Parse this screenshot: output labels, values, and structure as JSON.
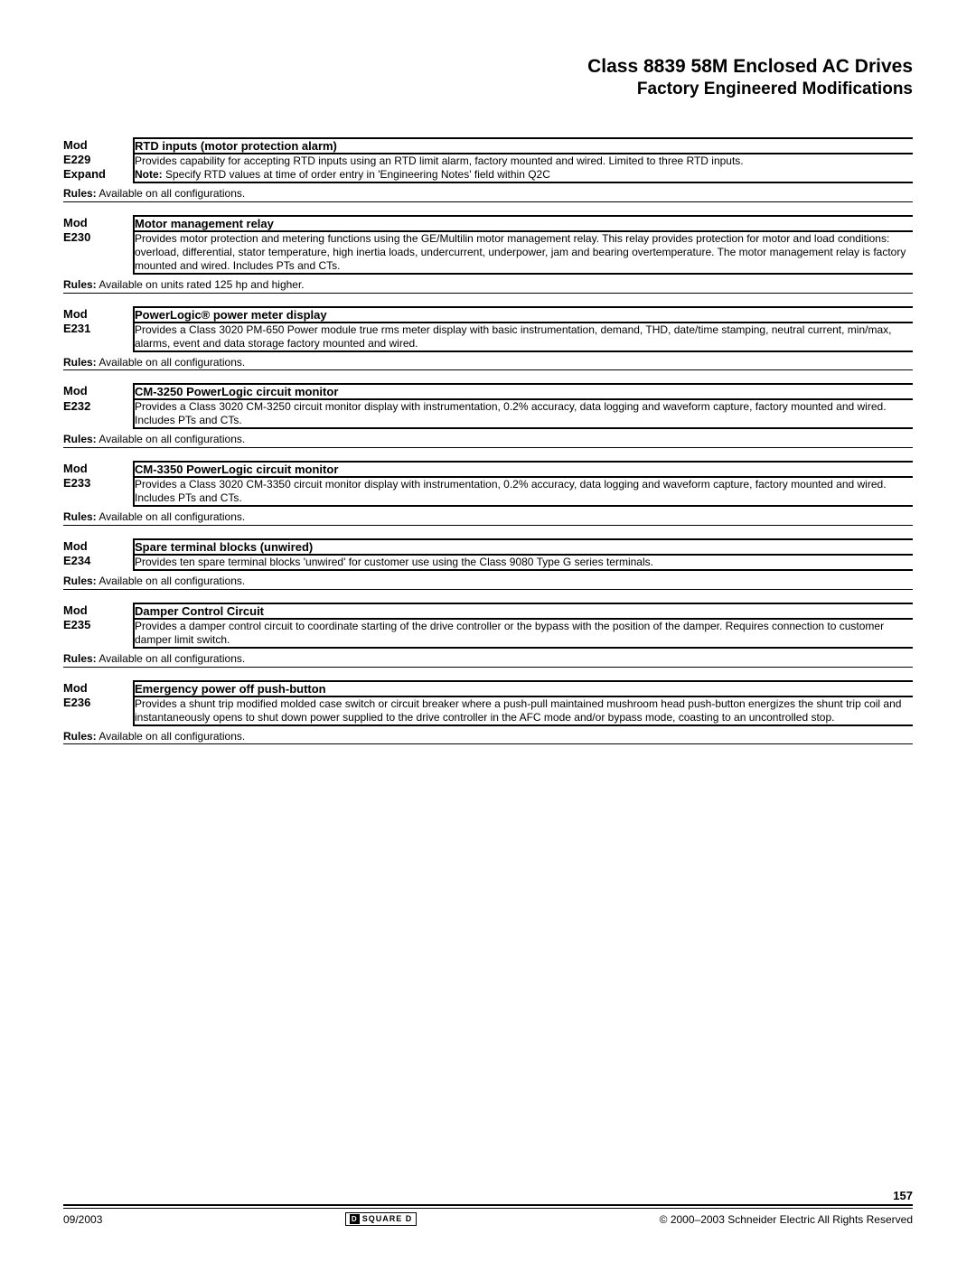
{
  "header": {
    "title1": "Class 8839 58M Enclosed AC Drives",
    "title2": "Factory Engineered Modifications"
  },
  "mods": [
    {
      "label_lines": [
        "Mod",
        "E229",
        "Expand"
      ],
      "title": "RTD inputs (motor protection alarm)",
      "desc_main": "Provides capability for accepting RTD inputs using an RTD limit alarm, factory mounted and wired. Limited to three RTD inputs.",
      "note_label": "Note:",
      "note_text": " Specify RTD values at time of order entry in 'Engineering Notes' field within Q2C",
      "rules_label": "Rules:",
      "rules_text": " Available on all configurations."
    },
    {
      "label_lines": [
        "Mod",
        "E230"
      ],
      "title": "Motor management relay",
      "desc_main": "Provides motor protection and metering functions using the GE/Multilin motor management relay. This relay provides protection for motor and load conditions: overload, differential, stator temperature, high inertia loads, undercurrent, underpower, jam and bearing overtemperature. The motor management relay is factory mounted and wired. Includes PTs and CTs.",
      "rules_label": "Rules:",
      "rules_text": " Available on units rated 125 hp and higher."
    },
    {
      "label_lines": [
        "Mod",
        "E231"
      ],
      "title": "PowerLogic® power meter display",
      "desc_main": "Provides a Class 3020 PM-650 Power module true rms meter display with basic instrumentation, demand, THD, date/time stamping, neutral current, min/max, alarms, event and data storage factory mounted and wired.",
      "rules_label": "Rules:",
      "rules_text": " Available on all configurations."
    },
    {
      "label_lines": [
        "Mod",
        "E232"
      ],
      "title": "CM-3250 PowerLogic circuit monitor",
      "desc_main": "Provides a Class 3020 CM-3250 circuit monitor display with instrumentation, 0.2% accuracy, data logging and waveform capture, factory mounted and wired. Includes PTs and CTs.",
      "rules_label": "Rules:",
      "rules_text": " Available on all configurations."
    },
    {
      "label_lines": [
        "Mod",
        "E233"
      ],
      "title": "CM-3350 PowerLogic circuit monitor",
      "desc_main": "Provides a Class 3020 CM-3350 circuit monitor display with instrumentation, 0.2% accuracy, data logging and waveform capture, factory mounted and wired. Includes PTs and CTs.",
      "rules_label": "Rules:",
      "rules_text": " Available on all configurations."
    },
    {
      "label_lines": [
        "Mod",
        "E234"
      ],
      "title": "Spare terminal blocks (unwired)",
      "desc_main": "Provides ten spare terminal blocks 'unwired' for customer use using the Class 9080 Type G series terminals.",
      "rules_label": "Rules:",
      "rules_text": " Available on all configurations."
    },
    {
      "label_lines": [
        "Mod",
        "E235"
      ],
      "title": "Damper Control Circuit",
      "desc_main": "Provides a damper control circuit to coordinate starting of the drive controller or the bypass with the position of the damper. Requires connection to customer damper limit switch.",
      "rules_label": "Rules:",
      "rules_text": " Available on all configurations."
    },
    {
      "label_lines": [
        "Mod",
        "E236"
      ],
      "title": "Emergency power off push-button",
      "desc_main": "Provides a shunt trip modified molded case switch or circuit breaker where a push-pull maintained mushroom head push-button energizes the shunt trip coil and instantaneously opens to shut down power supplied to the drive controller in the AFC mode and/or bypass mode, coasting to an uncontrolled stop.",
      "rules_label": "Rules:",
      "rules_text": " Available on all configurations."
    }
  ],
  "footer": {
    "page": "157",
    "date": "09/2003",
    "logo_text": "SQUARE D",
    "logo_glyph": "D",
    "copyright": "© 2000–2003 Schneider Electric  All Rights Reserved"
  }
}
